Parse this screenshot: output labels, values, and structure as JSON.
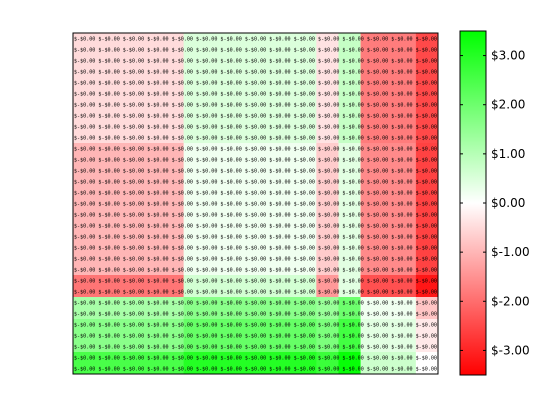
{
  "chart_data": {
    "type": "heatmap",
    "title": "",
    "xlabel": "",
    "ylabel": "",
    "color_scale": {
      "min": -3.5,
      "max": 3.5,
      "low_color": "#ff0000",
      "mid_color": "#ffffff",
      "high_color": "#00ff00",
      "ticks": [
        {
          "value": 3,
          "label": "$3.00"
        },
        {
          "value": 2,
          "label": "$2.00"
        },
        {
          "value": 1,
          "label": "$1.00"
        },
        {
          "value": 0,
          "label": "$0.00"
        },
        {
          "value": -1,
          "label": "$-1.00"
        },
        {
          "value": -2,
          "label": "$-2.00"
        },
        {
          "value": -3,
          "label": "$-3.00"
        }
      ]
    },
    "x_bands": [
      {
        "start": 0,
        "end": 10
      },
      {
        "start": 10,
        "end": 22
      },
      {
        "start": 22,
        "end": 24
      },
      {
        "start": 24,
        "end": 26
      },
      {
        "start": 26,
        "end": 31
      },
      {
        "start": 31,
        "end": 33
      }
    ],
    "y_bands": [
      {
        "start": 0,
        "end": 10,
        "values": [
          -0.5,
          0.5,
          -0.4,
          0.8,
          -1.8,
          -2.5
        ]
      },
      {
        "start": 10,
        "end": 22,
        "values": [
          -1.0,
          0.2,
          -0.7,
          0.4,
          -1.6,
          -2.6
        ]
      },
      {
        "start": 22,
        "end": 24,
        "values": [
          -1.9,
          0.6,
          -1.4,
          0.4,
          -2.4,
          -3.2
        ]
      },
      {
        "start": 24,
        "end": 26,
        "values": [
          1.2,
          1.6,
          1.4,
          2.0,
          0.2,
          -0.8
        ]
      },
      {
        "start": 26,
        "end": 29,
        "values": [
          1.6,
          2.1,
          1.8,
          2.6,
          0.4,
          -0.3
        ]
      },
      {
        "start": 29,
        "end": 31,
        "values": [
          2.5,
          3.0,
          2.7,
          3.4,
          0.7,
          0.0
        ]
      }
    ],
    "cell_text_marker": "$-$0.00"
  }
}
